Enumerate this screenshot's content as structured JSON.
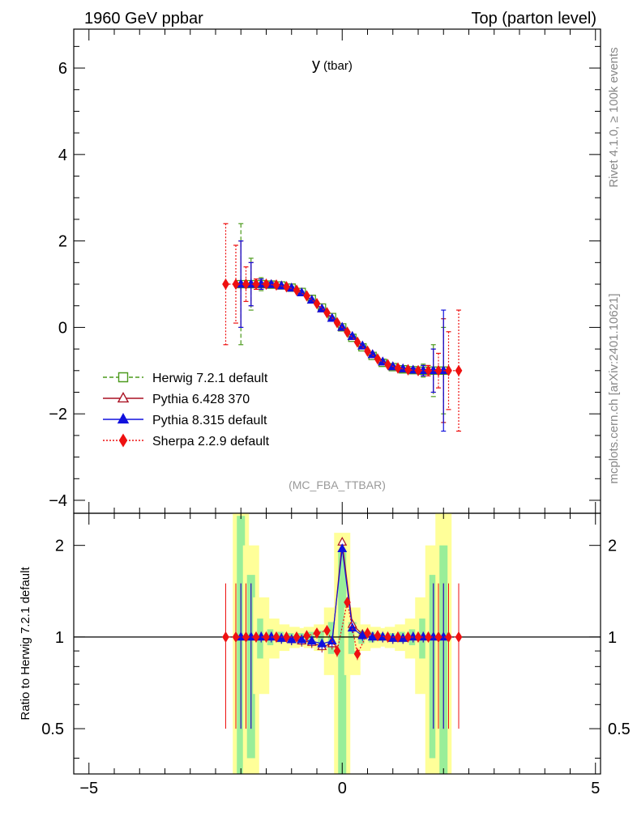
{
  "header": {
    "left": "1960 GeV ppbar",
    "right": "Top (parton level)",
    "side_rivet": "Rivet 4.1.0, ≥ 100k events",
    "side_mcplots": "mcplots.cern.ch [arXiv:2401.10621]",
    "analysis": "(MC_FBA_TTBAR)"
  },
  "chart_data": [
    {
      "type": "line",
      "panel": "main",
      "title_main": "y",
      "title_sub": "(tbar)",
      "xlabel": "",
      "ylabel": "",
      "xlim": [
        -5.3,
        5.1
      ],
      "ylim": [
        -4.3,
        6.9
      ],
      "xticks": [
        -5,
        0,
        5
      ],
      "yticks": [
        -4,
        -2,
        0,
        2,
        4,
        6
      ],
      "ytick_labels": [
        "−4",
        "−2",
        "0",
        "2",
        "4",
        "6"
      ],
      "grid": false,
      "legend_position": "lower-left",
      "legend": [
        {
          "name": "Herwig 7.2.1 default",
          "color": "#4c9a1c",
          "marker": "open-square",
          "style": "dashed"
        },
        {
          "name": "Pythia 6.428 370",
          "color": "#aa1122",
          "marker": "open-triangle",
          "style": "solid"
        },
        {
          "name": "Pythia 8.315 default",
          "color": "#1111dd",
          "marker": "filled-triangle",
          "style": "solid"
        },
        {
          "name": "Sherpa 2.2.9 default",
          "color": "#ee1111",
          "marker": "filled-diamond",
          "style": "dotted"
        }
      ],
      "series": [
        {
          "name": "Herwig 7.2.1 default",
          "x": [
            -2.0,
            -1.8,
            -1.6,
            -1.4,
            -1.2,
            -1.0,
            -0.8,
            -0.6,
            -0.4,
            -0.2,
            0.0,
            0.2,
            0.4,
            0.6,
            0.8,
            1.0,
            1.2,
            1.4,
            1.6,
            1.8,
            2.0
          ],
          "y": [
            1.0,
            1.0,
            1.0,
            0.99,
            0.97,
            0.92,
            0.82,
            0.66,
            0.46,
            0.24,
            0.0,
            -0.24,
            -0.46,
            -0.66,
            -0.82,
            -0.92,
            -0.97,
            -0.99,
            -1.0,
            -1.0,
            -1.0
          ],
          "yerr": [
            1.4,
            0.6,
            0.15,
            0.06,
            0.04,
            0.03,
            0.03,
            0.03,
            0.03,
            0.03,
            0.03,
            0.03,
            0.03,
            0.03,
            0.03,
            0.03,
            0.04,
            0.06,
            0.15,
            0.6,
            1.0
          ]
        },
        {
          "name": "Pythia 6.428 370",
          "x": [
            -2.0,
            -1.8,
            -1.6,
            -1.4,
            -1.2,
            -1.0,
            -0.8,
            -0.6,
            -0.4,
            -0.2,
            0.0,
            0.2,
            0.4,
            0.6,
            0.8,
            1.0,
            1.2,
            1.4,
            1.6,
            1.8,
            2.0
          ],
          "y": [
            1.0,
            1.0,
            1.0,
            0.99,
            0.96,
            0.91,
            0.8,
            0.63,
            0.43,
            0.21,
            0.0,
            -0.21,
            -0.43,
            -0.63,
            -0.8,
            -0.91,
            -0.96,
            -0.99,
            -1.0,
            -1.0,
            -1.0
          ],
          "yerr": [
            1.0,
            0.5,
            0.12,
            0.05,
            0.03,
            0.03,
            0.03,
            0.03,
            0.03,
            0.03,
            0.03,
            0.03,
            0.03,
            0.03,
            0.03,
            0.03,
            0.03,
            0.05,
            0.12,
            0.5,
            1.2
          ]
        },
        {
          "name": "Pythia 8.315 default",
          "x": [
            -2.0,
            -1.8,
            -1.6,
            -1.4,
            -1.2,
            -1.0,
            -0.8,
            -0.6,
            -0.4,
            -0.2,
            0.0,
            0.2,
            0.4,
            0.6,
            0.8,
            1.0,
            1.2,
            1.4,
            1.6,
            1.8,
            2.0
          ],
          "y": [
            1.0,
            1.0,
            1.0,
            0.99,
            0.96,
            0.91,
            0.8,
            0.63,
            0.43,
            0.21,
            0.0,
            -0.21,
            -0.43,
            -0.63,
            -0.8,
            -0.91,
            -0.96,
            -0.99,
            -1.0,
            -1.0,
            -1.0
          ],
          "yerr": [
            1.0,
            0.5,
            0.12,
            0.05,
            0.03,
            0.03,
            0.03,
            0.03,
            0.03,
            0.03,
            0.03,
            0.03,
            0.03,
            0.03,
            0.03,
            0.03,
            0.03,
            0.05,
            0.12,
            0.5,
            1.4
          ]
        },
        {
          "name": "Sherpa 2.2.9 default",
          "x": [
            -2.3,
            -2.1,
            -1.9,
            -1.7,
            -1.5,
            -1.3,
            -1.1,
            -0.9,
            -0.7,
            -0.5,
            -0.3,
            -0.1,
            0.1,
            0.3,
            0.5,
            0.7,
            0.9,
            1.1,
            1.3,
            1.5,
            1.7,
            1.9,
            2.1,
            2.3
          ],
          "y": [
            1.0,
            1.0,
            1.0,
            1.0,
            1.0,
            0.98,
            0.94,
            0.86,
            0.73,
            0.55,
            0.34,
            0.11,
            -0.11,
            -0.34,
            -0.55,
            -0.73,
            -0.86,
            -0.94,
            -0.98,
            -1.0,
            -1.0,
            -1.0,
            -1.0,
            -1.0
          ],
          "yerr": [
            1.4,
            0.9,
            0.4,
            0.12,
            0.05,
            0.04,
            0.03,
            0.03,
            0.03,
            0.03,
            0.03,
            0.03,
            0.03,
            0.03,
            0.03,
            0.03,
            0.03,
            0.03,
            0.04,
            0.05,
            0.12,
            0.4,
            0.9,
            1.4
          ]
        }
      ]
    },
    {
      "type": "line",
      "panel": "ratio",
      "ylabel": "Ratio to Herwig 7.2.1 default",
      "xlim": [
        -5.3,
        5.1
      ],
      "ylim": [
        0.355,
        2.55
      ],
      "ylog": true,
      "xticks": [
        -5,
        0,
        5
      ],
      "xtick_labels": [
        "−5",
        "0",
        "5"
      ],
      "yticks": [
        0.5,
        1,
        2
      ],
      "ytick_labels": [
        "0.5",
        "1",
        "2"
      ],
      "reference_line": 1,
      "band": {
        "x": [
          -2.0,
          -1.8,
          -1.6,
          -1.4,
          -1.2,
          -1.0,
          -0.8,
          -0.6,
          -0.4,
          -0.2,
          0.0,
          0.2,
          0.4,
          0.6,
          0.8,
          1.0,
          1.2,
          1.4,
          1.6,
          1.8,
          2.0
        ],
        "inner": [
          1.5,
          0.6,
          0.15,
          0.06,
          0.04,
          0.03,
          0.03,
          0.04,
          0.05,
          0.12,
          0.9,
          0.12,
          0.05,
          0.04,
          0.03,
          0.03,
          0.04,
          0.06,
          0.15,
          0.6,
          1.0
        ],
        "outer": [
          1.6,
          1.0,
          0.35,
          0.15,
          0.1,
          0.08,
          0.07,
          0.08,
          0.1,
          0.25,
          1.2,
          0.25,
          0.1,
          0.08,
          0.07,
          0.08,
          0.1,
          0.15,
          0.35,
          1.0,
          1.6
        ],
        "inner_color": "#99ee99",
        "outer_color": "#ffff99"
      },
      "series": [
        {
          "name": "Pythia 6.428 370",
          "x": [
            -2.0,
            -1.8,
            -1.6,
            -1.4,
            -1.2,
            -1.0,
            -0.8,
            -0.6,
            -0.4,
            -0.2,
            0.0,
            0.2,
            0.4,
            0.6,
            0.8,
            1.0,
            1.2,
            1.4,
            1.6,
            1.8,
            2.0
          ],
          "y": [
            1.0,
            1.0,
            1.0,
            1.0,
            0.99,
            0.98,
            0.97,
            0.96,
            0.93,
            0.95,
            2.05,
            1.1,
            1.02,
            1.0,
            1.0,
            0.99,
            0.99,
            1.0,
            1.0,
            1.0,
            1.0
          ]
        },
        {
          "name": "Pythia 8.315 default",
          "x": [
            -2.0,
            -1.8,
            -1.6,
            -1.4,
            -1.2,
            -1.0,
            -0.8,
            -0.6,
            -0.4,
            -0.2,
            0.0,
            0.2,
            0.4,
            0.6,
            0.8,
            1.0,
            1.2,
            1.4,
            1.6,
            1.8,
            2.0
          ],
          "y": [
            1.0,
            1.0,
            1.0,
            1.0,
            0.99,
            0.98,
            0.98,
            0.97,
            0.95,
            0.97,
            1.95,
            1.07,
            1.01,
            1.0,
            1.0,
            0.99,
            0.99,
            1.0,
            1.0,
            1.0,
            1.0
          ]
        },
        {
          "name": "Sherpa 2.2.9 default",
          "x": [
            -2.3,
            -2.1,
            -1.9,
            -1.7,
            -1.5,
            -1.3,
            -1.1,
            -0.9,
            -0.7,
            -0.5,
            -0.3,
            -0.1,
            0.1,
            0.3,
            0.5,
            0.7,
            0.9,
            1.1,
            1.3,
            1.5,
            1.7,
            1.9,
            2.1,
            2.3
          ],
          "y": [
            1.0,
            1.0,
            1.0,
            1.0,
            1.0,
            1.0,
            1.0,
            1.0,
            1.01,
            1.03,
            1.05,
            0.9,
            1.3,
            0.88,
            1.03,
            1.01,
            1.0,
            1.0,
            1.0,
            1.0,
            1.0,
            1.0,
            1.0,
            1.0
          ]
        }
      ]
    }
  ]
}
